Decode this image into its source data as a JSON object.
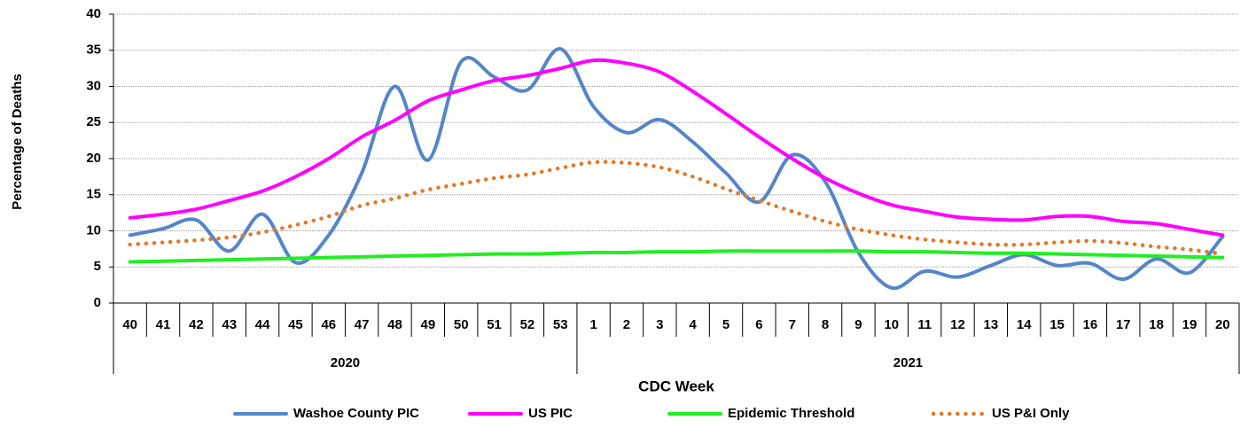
{
  "chart_data": {
    "type": "line",
    "y_label": "Percentage of Deaths",
    "x_label": "CDC Week",
    "groups": [
      {
        "name": "2020",
        "categories": [
          "40",
          "41",
          "42",
          "43",
          "44",
          "45",
          "46",
          "47",
          "48",
          "49",
          "50",
          "51",
          "52",
          "53"
        ]
      },
      {
        "name": "2021",
        "categories": [
          "1",
          "2",
          "3",
          "4",
          "5",
          "6",
          "7",
          "8",
          "9",
          "10",
          "11",
          "12",
          "13",
          "14",
          "15",
          "16",
          "17",
          "18",
          "19",
          "20"
        ]
      }
    ],
    "ylim": [
      0,
      40
    ],
    "yticks": [
      0,
      5,
      10,
      15,
      20,
      25,
      30,
      35,
      40
    ],
    "grid": true,
    "smooth": true,
    "legend": "bottom",
    "series": [
      {
        "name": "Washoe County PIC",
        "color": "#5585c9",
        "values": [
          9.4,
          10.3,
          11.5,
          7.2,
          12.3,
          5.6,
          9.4,
          18,
          30,
          19.8,
          33.4,
          31.3,
          29.5,
          35.2,
          27.2,
          23.6,
          25.4,
          22.3,
          18,
          14,
          20.5,
          16.8,
          7,
          2.1,
          4.4,
          3.6,
          5.2,
          6.7,
          5.2,
          5.5,
          3.3,
          6.1,
          4.2,
          9.2
        ]
      },
      {
        "name": "US PIC",
        "color": "#ff00ff",
        "values": [
          11.8,
          12.3,
          13,
          14.2,
          15.5,
          17.5,
          20,
          23,
          25.3,
          28,
          29.5,
          30.8,
          31.5,
          32.5,
          33.6,
          33.2,
          32,
          29.3,
          26.2,
          23,
          20,
          17.3,
          15.2,
          13.6,
          12.7,
          11.9,
          11.6,
          11.5,
          12,
          12,
          11.3,
          11,
          10.2,
          9.4
        ]
      },
      {
        "name": "Epidemic Threshold",
        "color": "#22ee22",
        "values": [
          5.7,
          5.8,
          5.9,
          6.0,
          6.1,
          6.2,
          6.3,
          6.4,
          6.5,
          6.6,
          6.7,
          6.8,
          6.8,
          6.9,
          7.0,
          7.0,
          7.1,
          7.1,
          7.2,
          7.2,
          7.2,
          7.2,
          7.2,
          7.1,
          7.1,
          7.0,
          6.9,
          6.9,
          6.8,
          6.7,
          6.6,
          6.5,
          6.4,
          6.3
        ]
      },
      {
        "name": "US P&I Only",
        "color": "#e07a2a",
        "dashed": true,
        "values": [
          8.1,
          8.4,
          8.7,
          9.1,
          9.8,
          10.8,
          12,
          13.5,
          14.5,
          15.7,
          16.5,
          17.3,
          17.8,
          18.7,
          19.5,
          19.4,
          18.8,
          17.5,
          15.8,
          14.2,
          12.7,
          11.3,
          10.2,
          9.4,
          8.8,
          8.4,
          8.1,
          8.1,
          8.4,
          8.6,
          8.3,
          7.8,
          7.4,
          6.8
        ]
      }
    ]
  }
}
